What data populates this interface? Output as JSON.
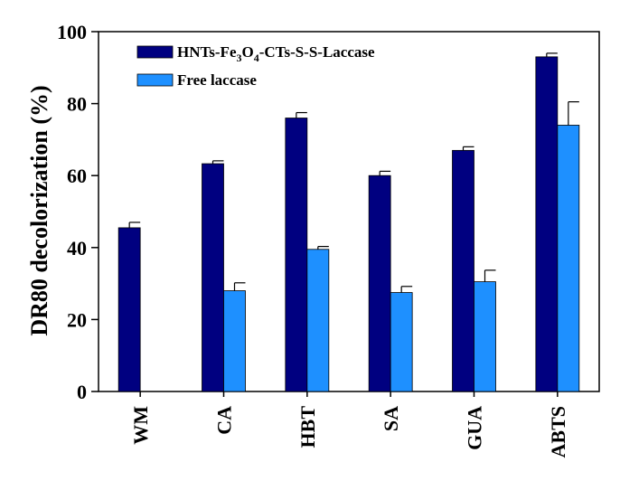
{
  "chart_data": {
    "type": "bar",
    "title": "",
    "xlabel": "",
    "ylabel": "DR80 decolorization (%)",
    "ylim": [
      0,
      100
    ],
    "yticks": [
      "0",
      "20",
      "40",
      "60",
      "80",
      "100"
    ],
    "categories": [
      "WM",
      "CA",
      "HBT",
      "SA",
      "GUA",
      "ABTS"
    ],
    "series": [
      {
        "name": "HNTs-Fe3O4-CTs-S-S-Laccase",
        "name_parts": {
          "pre": "HNTs-Fe",
          "sub1": "3",
          "mid": "O",
          "sub2": "4",
          "post": "-CTs-S-S-Laccase"
        },
        "color": "#000080",
        "values": [
          45.5,
          63.3,
          76.0,
          60.0,
          67.0,
          93.0
        ],
        "errors": [
          1.5,
          0.8,
          1.5,
          1.2,
          1.0,
          1.0
        ]
      },
      {
        "name": "Free laccase",
        "color": "#1E90FF",
        "values": [
          null,
          28.0,
          39.5,
          27.5,
          30.5,
          74.0
        ],
        "errors": [
          null,
          2.2,
          0.8,
          1.7,
          3.2,
          6.5
        ]
      }
    ],
    "legend_position": "top-left",
    "grid": false
  }
}
